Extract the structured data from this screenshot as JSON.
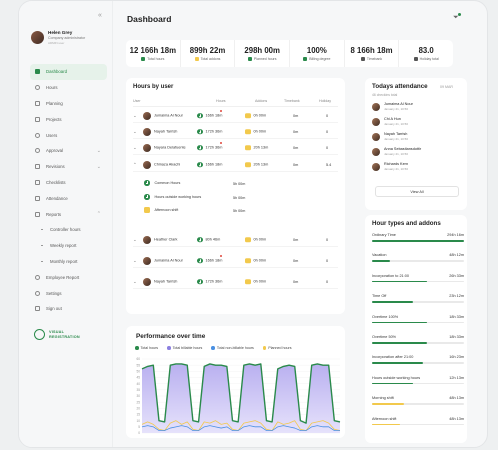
{
  "sidebar": {
    "user": {
      "name": "Helen Grey",
      "role": "Company administrator",
      "label": "ADMIN user"
    },
    "items": [
      {
        "label": "Dashboard",
        "icon": "grid-icon",
        "active": true
      },
      {
        "label": "Hours",
        "icon": "clock-icon"
      },
      {
        "label": "Planning",
        "icon": "calendar-icon"
      },
      {
        "label": "Projects",
        "icon": "folder-icon"
      },
      {
        "label": "Users",
        "icon": "users-icon"
      },
      {
        "label": "Approval",
        "icon": "check-icon",
        "chevron": true
      },
      {
        "label": "Revisions",
        "icon": "list-icon",
        "chevron": true
      },
      {
        "label": "Checklists",
        "icon": "checklist-icon"
      },
      {
        "label": "Attendance",
        "icon": "attendance-icon"
      },
      {
        "label": "Reports",
        "icon": "report-icon",
        "chevron": true,
        "expanded": true
      }
    ],
    "subitems": [
      "Controller hours",
      "Weekly report",
      "Monthly report"
    ],
    "bottom_items": [
      {
        "label": "Employee Report",
        "icon": "employee-icon"
      },
      {
        "label": "Settings",
        "icon": "gear-icon"
      },
      {
        "label": "Sign out",
        "icon": "signout-icon"
      }
    ],
    "brand": {
      "line1": "VISUAL",
      "line2": "REGISTRATION"
    }
  },
  "header": {
    "title": "Dashboard"
  },
  "stats": [
    {
      "value": "12 166h 18m",
      "label": "Total hours",
      "color": "#2a8a4b"
    },
    {
      "value": "899h 22m",
      "label": "Total addons",
      "color": "#f2c94c"
    },
    {
      "value": "298h 00m",
      "label": "Planned hours",
      "color": "#2a8a4b"
    },
    {
      "value": "100%",
      "label": "Billing degree",
      "color": "#2a8a4b"
    },
    {
      "value": "8 166h 18m",
      "label": "Timebank",
      "color": "#555555"
    },
    {
      "value": "83.0",
      "label": "Holiday total",
      "color": "#555555"
    }
  ],
  "hours_by_user": {
    "title": "Hours by user",
    "columns": [
      "User",
      "Hours",
      "Addons",
      "Timebank",
      "Holiday"
    ],
    "rows": [
      {
        "name": "Jumaima Al Nour",
        "hours": "166h 18m",
        "addons": "0h 00m",
        "timebank": "0m",
        "holiday": "0",
        "flag": true
      },
      {
        "name": "Nayah Tarrish",
        "hours": "172h 36m",
        "addons": "0h 00m",
        "timebank": "0m",
        "holiday": "0"
      },
      {
        "name": "Nayara Delafuente",
        "hours": "172h 36m",
        "addons": "20h 13m",
        "timebank": "0m",
        "holiday": "0",
        "flag": true
      },
      {
        "name": "Chinaza Akachi",
        "hours": "166h 18m",
        "addons": "20h 13m",
        "timebank": "0m",
        "holiday": "5.4",
        "expanded": true
      }
    ],
    "sub_rows": [
      {
        "label": "Common Hours",
        "value": "5h 00m"
      },
      {
        "label": "Hours outside working hours",
        "value": "5h 00m"
      },
      {
        "label": "Afternoon shift",
        "value": "5h 00m"
      }
    ],
    "rows2": [
      {
        "name": "Heather Clark",
        "hours": "80h 46m",
        "addons": "0h 00m",
        "timebank": "0m",
        "holiday": "0"
      },
      {
        "name": "Jumaima Al Nour",
        "hours": "166h 18m",
        "addons": "0h 00m",
        "timebank": "0m",
        "holiday": "0",
        "flag": true
      },
      {
        "name": "Nayah Tarrish",
        "hours": "172h 36m",
        "addons": "0h 00m",
        "timebank": "0m",
        "holiday": "0"
      }
    ],
    "footer": {
      "label": "Total",
      "hours": "1016h 22m",
      "addons": "5h 30m",
      "pagination": "1-15 of 83"
    }
  },
  "performance": {
    "title": "Performance over time",
    "legend": [
      {
        "name": "Total hours",
        "color": "#2a8a4b"
      },
      {
        "name": "Total billable hours",
        "color": "#8b7fe0"
      },
      {
        "name": "Total non-billable hours",
        "color": "#4a90e2"
      },
      {
        "name": "Planned hours",
        "color": "#f2c94c"
      }
    ],
    "y_ticks": [
      "60",
      "55",
      "50",
      "45",
      "40",
      "35",
      "30",
      "25",
      "20",
      "15",
      "10",
      "5",
      "0"
    ]
  },
  "chart_data": {
    "type": "area",
    "title": "Performance over time",
    "xlabel": "",
    "ylabel": "",
    "ylim": [
      0,
      60
    ],
    "x": [
      1,
      2,
      3,
      4,
      5,
      6,
      7,
      8,
      9,
      10,
      11,
      12,
      13,
      14,
      15,
      16,
      17,
      18,
      19,
      20,
      21,
      22,
      23,
      24,
      25,
      26,
      27,
      28,
      29,
      30,
      31,
      32,
      33,
      34,
      35,
      36
    ],
    "series": [
      {
        "name": "Total hours",
        "values": [
          52,
          54,
          55,
          10,
          9,
          55,
          56,
          56,
          55,
          10,
          9,
          54,
          56,
          55,
          55,
          54,
          10,
          9,
          55,
          56,
          55,
          56,
          10,
          9,
          52,
          54,
          55,
          54,
          10,
          8,
          55,
          56,
          55,
          55,
          10,
          9
        ]
      },
      {
        "name": "Total billable hours",
        "values": [
          52,
          54,
          55,
          10,
          9,
          55,
          56,
          56,
          55,
          10,
          9,
          54,
          56,
          55,
          55,
          54,
          10,
          9,
          55,
          56,
          55,
          56,
          10,
          9,
          52,
          54,
          55,
          54,
          10,
          8,
          55,
          56,
          55,
          55,
          10,
          9
        ]
      },
      {
        "name": "Total non-billable hours",
        "values": [
          5,
          6,
          5,
          2,
          2,
          4,
          5,
          6,
          5,
          2,
          2,
          5,
          6,
          5,
          4,
          5,
          2,
          2,
          5,
          6,
          5,
          5,
          2,
          2,
          5,
          6,
          5,
          4,
          2,
          2,
          5,
          6,
          5,
          5,
          2,
          2
        ]
      },
      {
        "name": "Planned hours",
        "values": [
          7,
          9,
          7,
          3,
          2,
          8,
          10,
          7,
          9,
          3,
          2,
          9,
          8,
          10,
          7,
          8,
          3,
          2,
          8,
          9,
          10,
          8,
          3,
          2,
          9,
          7,
          8,
          10,
          3,
          2,
          8,
          9,
          10,
          8,
          3,
          2
        ]
      }
    ]
  },
  "attendance": {
    "title": "Todays attendance",
    "date": "09 MAR",
    "subtitle": "46 checkins total",
    "people": [
      {
        "name": "Jumaima Al Nour",
        "time": "January 21, 10:50"
      },
      {
        "name": "Chi A Hun",
        "time": "January 21, 10:50"
      },
      {
        "name": "Nayah Tarrish",
        "time": "January 21, 10:50"
      },
      {
        "name": "Anna Sebastiansdottir",
        "time": "January 21, 10:50"
      },
      {
        "name": "Richards Kern",
        "time": "January 21, 10:50"
      }
    ],
    "view_all": "View All"
  },
  "hour_types": {
    "title": "Hour types and addons",
    "items": [
      {
        "label": "Ordinary Time",
        "value": "294h 16m",
        "fraction": 1.0,
        "color": "#2a8a4b"
      },
      {
        "label": "Vacation",
        "value": "48h 12m",
        "fraction": 0.2,
        "color": "#2a8a4b"
      },
      {
        "label": "Incorporation to 21:00",
        "value": "26h 33m",
        "fraction": 0.6,
        "color": "#2a8a4b"
      },
      {
        "label": "Time Off",
        "value": "23h 12m",
        "fraction": 0.45,
        "color": "#2a8a4b"
      },
      {
        "label": "Overtime 100%",
        "value": "18h 33m",
        "fraction": 0.6,
        "color": "#2a8a4b"
      },
      {
        "label": "Overtime 50%",
        "value": "18h 33m",
        "fraction": 0.6,
        "color": "#2a8a4b"
      },
      {
        "label": "Incorporation after 21:00",
        "value": "16h 23m",
        "fraction": 0.55,
        "color": "#2a8a4b"
      },
      {
        "label": "Hours outside working hours",
        "value": "12h 13m",
        "fraction": 0.45,
        "color": "#2a8a4b"
      },
      {
        "label": "Morning shift",
        "value": "48h 13m",
        "fraction": 0.35,
        "color": "#f2c94c"
      },
      {
        "label": "Afternoon shift",
        "value": "48h 13m",
        "fraction": 0.3,
        "color": "#f2c94c"
      }
    ]
  }
}
